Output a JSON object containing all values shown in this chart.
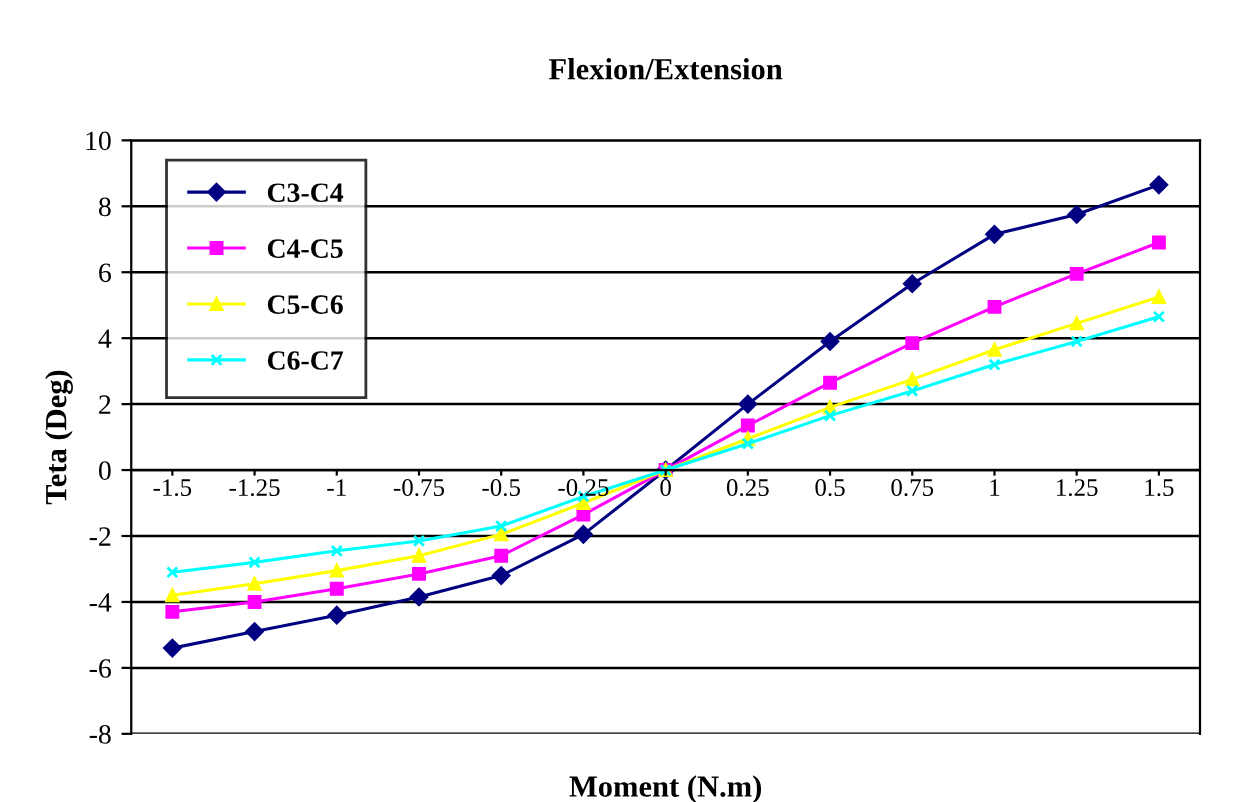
{
  "chart_data": {
    "type": "line",
    "title": "Flexion/Extension",
    "xlabel": "Moment (N.m)",
    "ylabel": "Teta (Deg)",
    "categories": [
      "-1.5",
      "-1.25",
      "-1",
      "-0.75",
      "-0.5",
      "-0.25",
      "0",
      "0.25",
      "0.5",
      "0.75",
      "1",
      "1.25",
      "1.5"
    ],
    "series": [
      {
        "name": "C3-C4",
        "color": "#000080",
        "marker": "diamond",
        "values": [
          -5.4,
          -4.9,
          -4.4,
          -3.85,
          -3.2,
          -1.95,
          0,
          2.0,
          3.9,
          5.65,
          7.15,
          7.75,
          8.65
        ]
      },
      {
        "name": "C4-C5",
        "color": "#ff00ff",
        "marker": "square",
        "values": [
          -4.3,
          -4.0,
          -3.6,
          -3.15,
          -2.6,
          -1.35,
          0,
          1.35,
          2.65,
          3.85,
          4.95,
          5.95,
          6.9
        ]
      },
      {
        "name": "C5-C6",
        "color": "#ffff00",
        "marker": "triangle",
        "values": [
          -3.8,
          -3.45,
          -3.05,
          -2.6,
          -1.95,
          -1.0,
          0,
          0.95,
          1.9,
          2.75,
          3.65,
          4.45,
          5.25
        ]
      },
      {
        "name": "C6-C7",
        "color": "#00ffff",
        "marker": "cross",
        "values": [
          -3.1,
          -2.8,
          -2.45,
          -2.15,
          -1.7,
          -0.8,
          0,
          0.8,
          1.65,
          2.4,
          3.2,
          3.9,
          4.65
        ]
      }
    ],
    "ylim": [
      -8,
      10
    ],
    "yticks": [
      -8,
      -6,
      -4,
      -2,
      0,
      2,
      4,
      6,
      8,
      10
    ],
    "grid": "y",
    "legend": "top left"
  }
}
